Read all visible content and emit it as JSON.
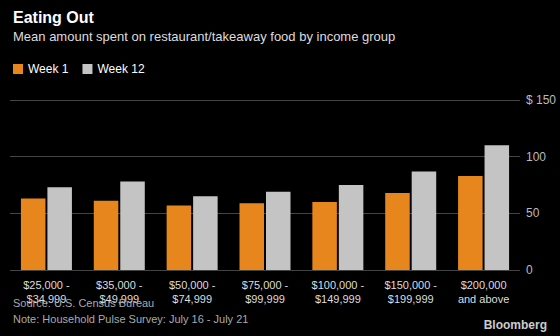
{
  "chart_data": {
    "type": "bar",
    "title": "Eating Out",
    "subtitle": "Mean amount spent on restaurant/takeaway food by income group",
    "source": "Source: U.S. Census Bureau",
    "note": "Note: Household Pulse Survey: July 16 - July 21",
    "credit": "Bloomberg",
    "categories": [
      "$25,000 -\n$34,999",
      "$35,000 -\n$49,999",
      "$50,000 -\n$74,999",
      "$75,000 -\n$99,999",
      "$100,000 -\n$149,999",
      "$150,000 -\n$199,999",
      "$200,000\nand above"
    ],
    "series": [
      {
        "name": "Week 1",
        "color": "#e8861e",
        "values": [
          63,
          61,
          57,
          59,
          60,
          68,
          83
        ]
      },
      {
        "name": "Week 12",
        "color": "#c4c4c4",
        "values": [
          73,
          78,
          65,
          69,
          75,
          87,
          110
        ]
      }
    ],
    "ylim": [
      0,
      150
    ],
    "yticks": [
      0,
      50,
      100,
      {
        "value": 150,
        "label": "$ 150"
      }
    ],
    "grid": true,
    "legend": "top-left"
  }
}
